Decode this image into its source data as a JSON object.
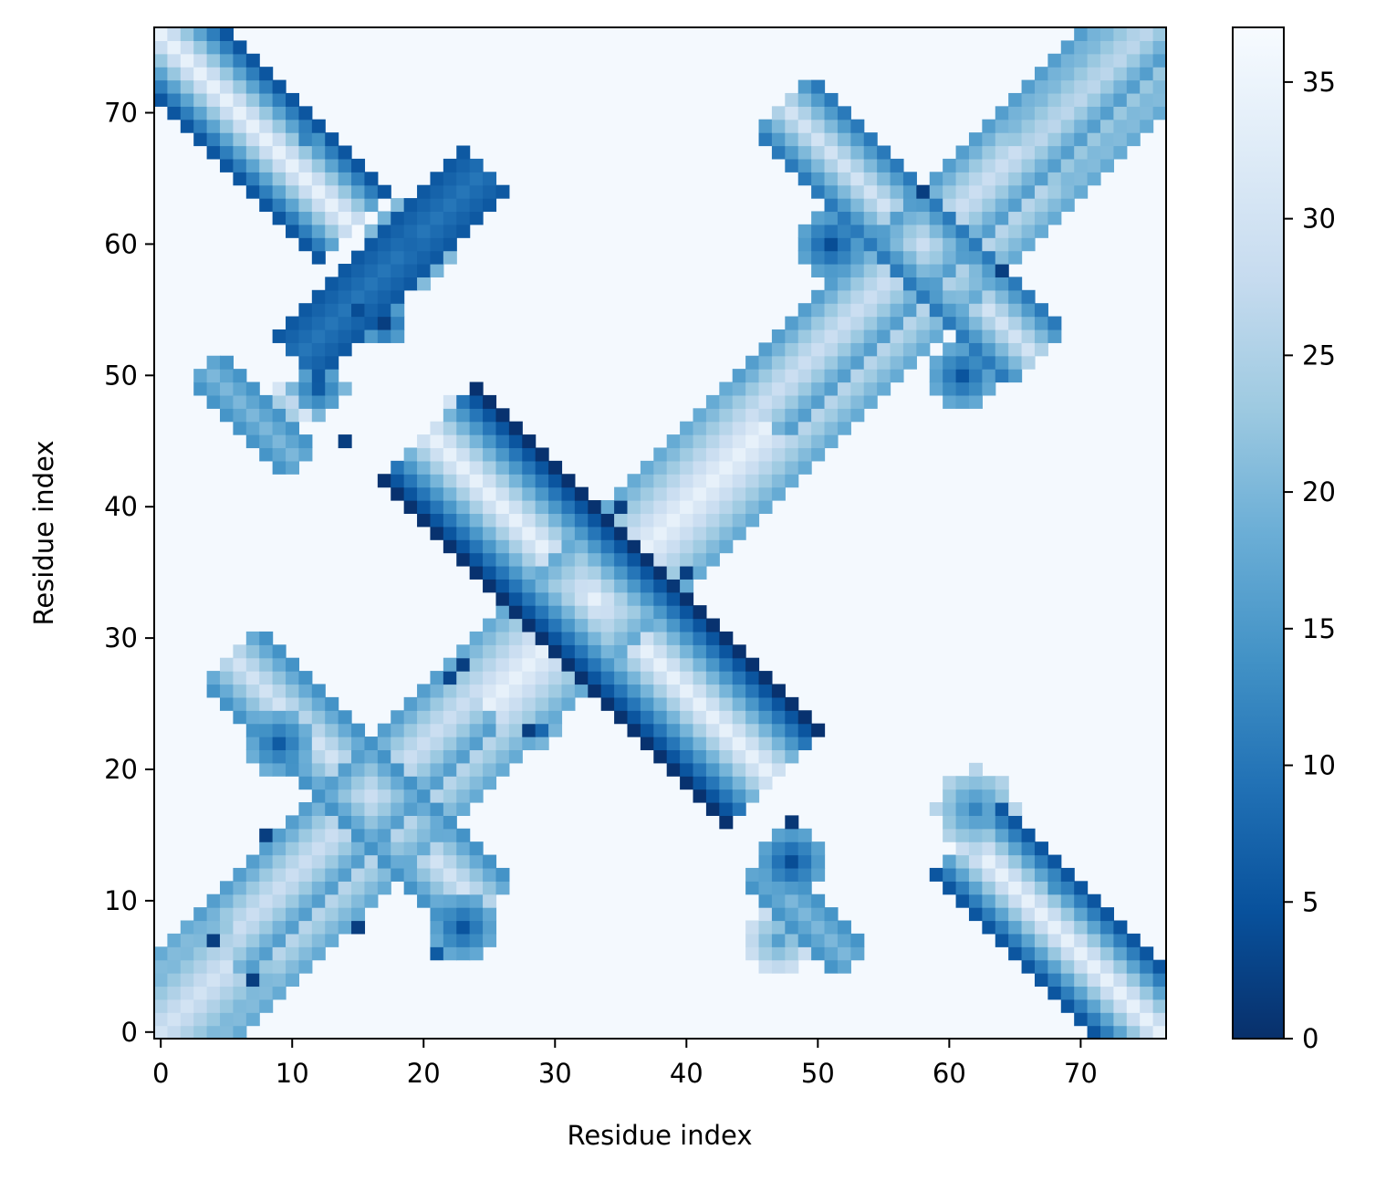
{
  "chart_data": {
    "type": "heatmap",
    "title": "",
    "xlabel": "Residue index",
    "ylabel": "Residue index",
    "n": 77,
    "xlim": [
      -0.5,
      76.5
    ],
    "ylim": [
      -0.5,
      76.5
    ],
    "xticks": [
      0,
      10,
      20,
      30,
      40,
      50,
      60,
      70
    ],
    "yticks": [
      0,
      10,
      20,
      30,
      40,
      50,
      60,
      70
    ],
    "origin": "lower",
    "colormap": "Blues_r",
    "background_value": 36.5,
    "colorbar": {
      "vmin": 0,
      "vmax": 37,
      "ticks": [
        0,
        5,
        10,
        15,
        20,
        25,
        30,
        35
      ]
    },
    "colors": {
      "low": "#08306b",
      "mid": "#4292c6",
      "high": "#f7fbff"
    },
    "bands": [
      {
        "ax": 33,
        "ay": 33,
        "dx": 1,
        "dy": 1,
        "t0": -33,
        "t1": 43,
        "halfwidth": 4.5,
        "v_center": 34,
        "v_edge": 17
      },
      {
        "ax": 33,
        "ay": 33,
        "dx": 1,
        "dy": -1,
        "t0": -12,
        "t1": 13,
        "halfwidth": 5,
        "v_center": 34,
        "v_edge": 0
      },
      {
        "ax": 17,
        "ay": 58,
        "dx": 1,
        "dy": 1,
        "t0": -6,
        "t1": 7,
        "halfwidth": 2.5,
        "v_center": 10,
        "v_edge": 5
      },
      {
        "ax": 0,
        "ay": 0,
        "dx": 1,
        "dy": 1,
        "t0": 0,
        "t1": 6,
        "halfwidth": 3.5,
        "v_center": 30,
        "v_edge": 18
      },
      {
        "ax": 73,
        "ay": 73,
        "dx": 1,
        "dy": 1,
        "t0": -6,
        "t1": 3,
        "halfwidth": 3.5,
        "v_center": 30,
        "v_edge": 18
      },
      {
        "ax": 0,
        "ay": 76,
        "dx": 1,
        "dy": -1,
        "t0": 0,
        "t1": 14,
        "halfwidth": 4.2,
        "v_center": 34,
        "v_edge": 0
      },
      {
        "ax": 76,
        "ay": 0,
        "dx": -1,
        "dy": 1,
        "t0": 0,
        "t1": 14,
        "halfwidth": 4.2,
        "v_center": 34,
        "v_edge": 0
      },
      {
        "ax": 16,
        "ay": 18,
        "dx": 1,
        "dy": 1,
        "t0": -11,
        "t1": 7,
        "halfwidth": 3.2,
        "v_center": 30,
        "v_edge": 14
      },
      {
        "ax": 16,
        "ay": 18,
        "dx": -1,
        "dy": 1,
        "t0": -8,
        "t1": 10,
        "halfwidth": 3.2,
        "v_center": 30,
        "v_edge": 12
      },
      {
        "ax": 58,
        "ay": 60,
        "dx": 1,
        "dy": 1,
        "t0": -12,
        "t1": 17,
        "halfwidth": 3.2,
        "v_center": 30,
        "v_edge": 14
      },
      {
        "ax": 58,
        "ay": 60,
        "dx": -1,
        "dy": 1,
        "t0": -8,
        "t1": 10,
        "halfwidth": 3.2,
        "v_center": 30,
        "v_edge": 8
      },
      {
        "ax": 4,
        "ay": 50,
        "dx": 1,
        "dy": -1,
        "t0": 0,
        "t1": 6,
        "halfwidth": 1.5,
        "v_center": 20,
        "v_edge": 14
      },
      {
        "ax": 46,
        "ay": 12,
        "dx": 1,
        "dy": -1,
        "t0": 0,
        "t1": 6,
        "halfwidth": 1.5,
        "v_center": 20,
        "v_edge": 14
      }
    ],
    "blobs": [
      {
        "x": 19,
        "y": 60,
        "r": 3.5,
        "v": 8
      },
      {
        "x": 12,
        "y": 49,
        "r": 2,
        "v": 6
      },
      {
        "x": 9,
        "y": 47,
        "r": 2.2,
        "v": 18
      },
      {
        "x": 22,
        "y": 48,
        "r": 2,
        "v": 30
      },
      {
        "x": 17,
        "y": 54,
        "r": 1.5,
        "v": 2
      },
      {
        "x": 48,
        "y": 13,
        "r": 2.5,
        "v": 4
      },
      {
        "x": 62,
        "y": 17,
        "r": 3,
        "v": 12
      },
      {
        "x": 9,
        "y": 22,
        "r": 2.5,
        "v": 6
      },
      {
        "x": 23,
        "y": 8,
        "r": 2.5,
        "v": 5
      },
      {
        "x": 51,
        "y": 60,
        "r": 2.5,
        "v": 4
      },
      {
        "x": 61,
        "y": 50,
        "r": 2.5,
        "v": 5
      },
      {
        "x": 47,
        "y": 7,
        "r": 2.5,
        "v": 16
      },
      {
        "x": 29,
        "y": 23,
        "r": 1.2,
        "v": 8
      }
    ],
    "points": [
      {
        "x": 11,
        "y": 68,
        "v": 12
      },
      {
        "x": 12,
        "y": 68,
        "v": 14
      },
      {
        "x": 35,
        "y": 40,
        "v": 2
      },
      {
        "x": 40,
        "y": 35,
        "v": 2
      },
      {
        "x": 39,
        "y": 34,
        "v": 1
      },
      {
        "x": 23,
        "y": 28,
        "v": 2
      },
      {
        "x": 22,
        "y": 27,
        "v": 3
      },
      {
        "x": 28,
        "y": 23,
        "v": 2
      },
      {
        "x": 68,
        "y": 12,
        "v": 12
      },
      {
        "x": 68,
        "y": 11,
        "v": 14
      },
      {
        "x": 58,
        "y": 64,
        "v": 2
      },
      {
        "x": 64,
        "y": 58,
        "v": 2
      },
      {
        "x": 4,
        "y": 7,
        "v": 2
      },
      {
        "x": 7,
        "y": 4,
        "v": 2
      },
      {
        "x": 48,
        "y": 16,
        "v": 1
      },
      {
        "x": 15,
        "y": 55,
        "v": 4
      },
      {
        "x": 14,
        "y": 45,
        "v": 2
      },
      {
        "x": 8,
        "y": 15,
        "v": 2
      },
      {
        "x": 15,
        "y": 8,
        "v": 2
      },
      {
        "x": 21,
        "y": 6,
        "v": 6
      }
    ]
  }
}
